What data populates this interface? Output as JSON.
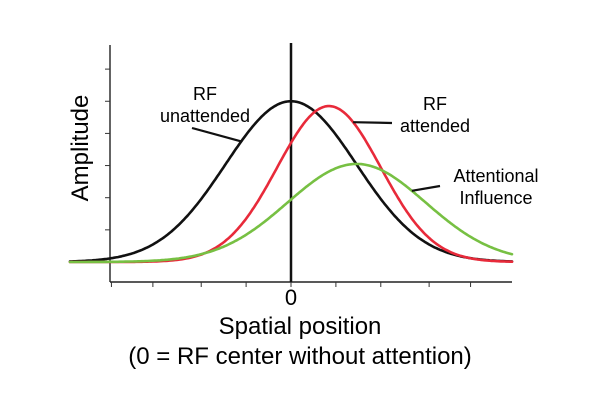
{
  "chart_data": {
    "type": "line",
    "xlabel": "Spatial position",
    "xlabel_note": "(0 = RF center without attention)",
    "ylabel": "Amplitude",
    "x_ticks": [
      {
        "value": -2.6
      },
      {
        "value": -2.0
      },
      {
        "value": -1.3
      },
      {
        "value": -0.65
      },
      {
        "value": 0,
        "label": "0"
      },
      {
        "value": 0.65
      },
      {
        "value": 1.3
      },
      {
        "value": 2.0
      },
      {
        "value": 2.6
      }
    ],
    "y_ticks": [
      0,
      0.2,
      0.4,
      0.6,
      0.8,
      1.0,
      1.2
    ],
    "xlim": [
      -3.2,
      3.2
    ],
    "ylim": [
      0,
      1.35
    ],
    "series": [
      {
        "key": "unattended",
        "label_lines": [
          "RF",
          "unattended"
        ],
        "color": "#111111",
        "mu": 0.0,
        "sigma": 0.95,
        "amp": 1.0,
        "baseline": 0.0,
        "label_pos": "upper-left",
        "pointer_x": -0.72
      },
      {
        "key": "attended",
        "label_lines": [
          "RF",
          "attended"
        ],
        "color": "#e82a3a",
        "mu": 0.55,
        "sigma": 0.75,
        "amp": 0.97,
        "baseline": 0.0,
        "label_pos": "upper-right",
        "pointer_x": 0.9
      },
      {
        "key": "influence",
        "label_lines": [
          "Attentional",
          "Influence"
        ],
        "color": "#77c043",
        "mu": 0.95,
        "sigma": 1.0,
        "amp": 0.61,
        "baseline": 0.0,
        "label_pos": "right",
        "pointer_x": 1.75
      }
    ],
    "grid": false,
    "legend": "inline-labels"
  }
}
